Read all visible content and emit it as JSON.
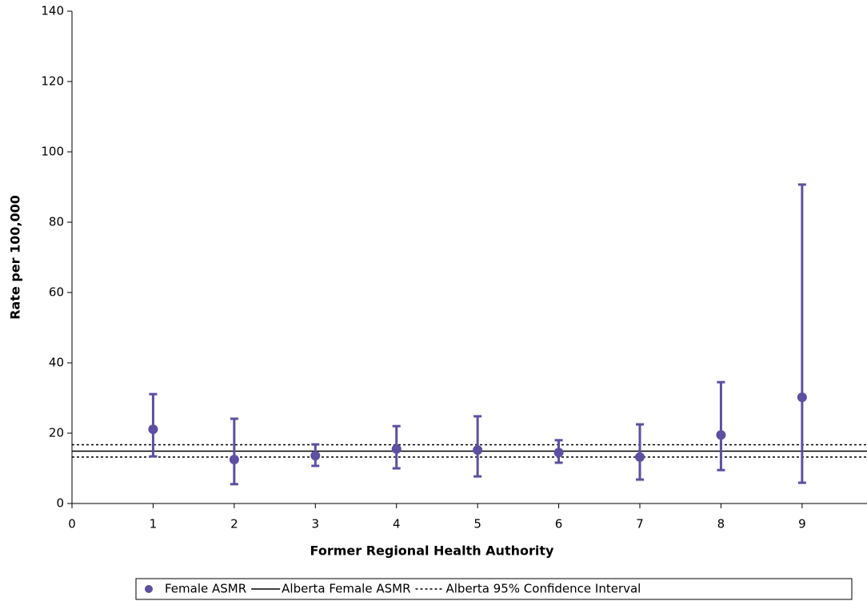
{
  "chart_data": {
    "type": "errorbar",
    "xlabel": "Former Regional Health Authority",
    "ylabel": "Rate per 100,000",
    "xlim": [
      0,
      9.8
    ],
    "xticks": [
      0,
      1,
      2,
      3,
      4,
      5,
      6,
      7,
      8,
      9
    ],
    "ylim": [
      0,
      140
    ],
    "yticks": [
      0,
      20,
      40,
      60,
      80,
      100,
      120,
      140
    ],
    "series": [
      {
        "name": "Female ASMR",
        "color": "#5e4fa2",
        "x": [
          1,
          2,
          3,
          4,
          5,
          6,
          7,
          8,
          9
        ],
        "values": [
          21.1,
          12.5,
          13.6,
          15.5,
          15.2,
          14.5,
          13.2,
          19.5,
          30.2
        ],
        "lower": [
          13.4,
          5.5,
          10.7,
          10,
          7.7,
          11.6,
          6.8,
          9.5,
          5.9
        ],
        "upper": [
          31.1,
          24.1,
          16.8,
          22,
          24.8,
          18,
          22.5,
          34.5,
          90.7
        ]
      }
    ],
    "reference_lines": [
      {
        "name": "Alberta Female ASMR",
        "value": 14.9,
        "style": "solid",
        "color": "#000000"
      },
      {
        "name": "Alberta 95% Confidence Interval",
        "value": 16.7,
        "style": "dotted",
        "color": "#000000"
      },
      {
        "value": 13.2,
        "style": "dotted",
        "color": "#000000"
      }
    ]
  }
}
